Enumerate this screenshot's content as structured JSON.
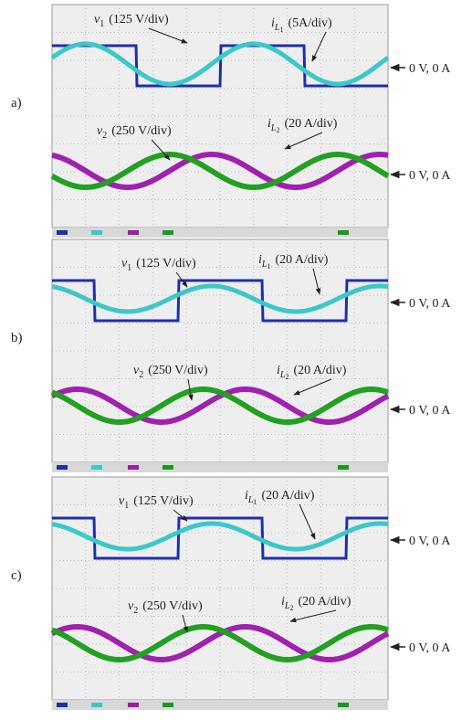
{
  "panels": [
    {
      "label": "a)",
      "annotations": [
        {
          "symbol": "v",
          "sub": "1",
          "scale": "(125 V/div)"
        },
        {
          "symbol": "i",
          "sub": "L",
          "subsub": "1",
          "scale": "(5A/div)"
        },
        {
          "symbol": "v",
          "sub": "2",
          "scale": "(250 V/div)"
        },
        {
          "symbol": "i",
          "sub": "L",
          "subsub": "2",
          "scale": "(20 A/div)"
        }
      ],
      "zero_labels": [
        "0 V, 0 A",
        "0 V, 0 A"
      ]
    },
    {
      "label": "b)",
      "annotations": [
        {
          "symbol": "v",
          "sub": "1",
          "scale": "(125 V/div)"
        },
        {
          "symbol": "i",
          "sub": "L",
          "subsub": "1",
          "scale": "(20 A/div)"
        },
        {
          "symbol": "v",
          "sub": "2",
          "scale": "(250 V/div)"
        },
        {
          "symbol": "i",
          "sub": "L",
          "subsub": "2",
          "scale": "(20 A/div)"
        }
      ],
      "zero_labels": [
        "0 V, 0 A",
        "0 V, 0 A"
      ]
    },
    {
      "label": "c)",
      "annotations": [
        {
          "symbol": "v",
          "sub": "1",
          "scale": "(125 V/div)"
        },
        {
          "symbol": "i",
          "sub": "L",
          "subsub": "1",
          "scale": "(20 A/div)"
        },
        {
          "symbol": "v",
          "sub": "2",
          "scale": "(250 V/div)"
        },
        {
          "symbol": "i",
          "sub": "L",
          "subsub": "2",
          "scale": "(20 A/div)"
        }
      ],
      "zero_labels": [
        "0 V, 0 A",
        "0 V, 0 A"
      ]
    }
  ]
}
